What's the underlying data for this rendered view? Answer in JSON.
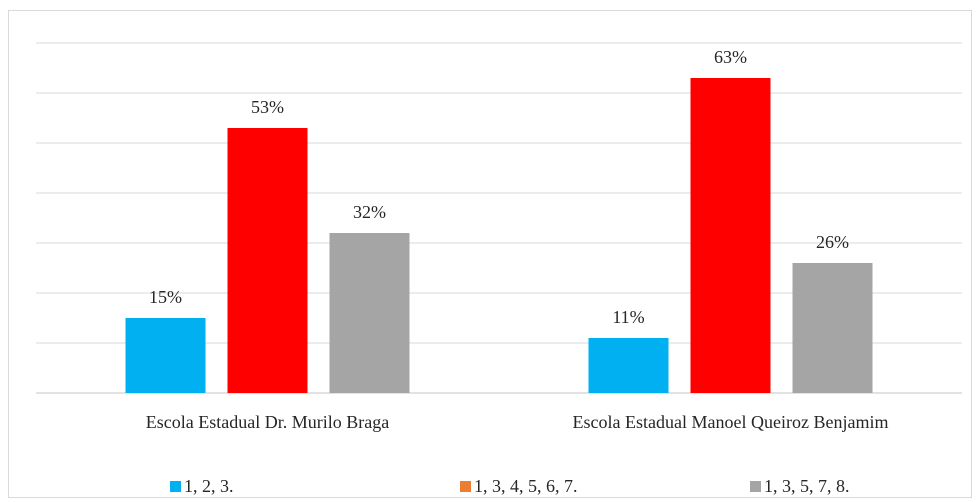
{
  "chart_data": {
    "type": "bar",
    "categories": [
      "Escola Estadual Dr. Murilo Braga",
      "Escola Estadual Manoel Queiroz Benjamim"
    ],
    "series": [
      {
        "name": "1, 2, 3.",
        "values": [
          15,
          11
        ],
        "color": "#00b0f0",
        "labels": [
          "15%",
          "11%"
        ]
      },
      {
        "name": "1, 3, 4, 5, 6, 7.",
        "values": [
          53,
          63
        ],
        "color": "#ff0000",
        "legend_color": "#ed7d31",
        "labels": [
          "53%",
          "63%"
        ]
      },
      {
        "name": "1, 3, 5, 7, 8.",
        "values": [
          32,
          26
        ],
        "color": "#a5a5a5",
        "labels": [
          "32%",
          "26%"
        ]
      }
    ],
    "ylim": [
      0,
      70
    ],
    "grid": true,
    "legend": "bottom",
    "title": "",
    "xlabel": "",
    "ylabel": ""
  }
}
